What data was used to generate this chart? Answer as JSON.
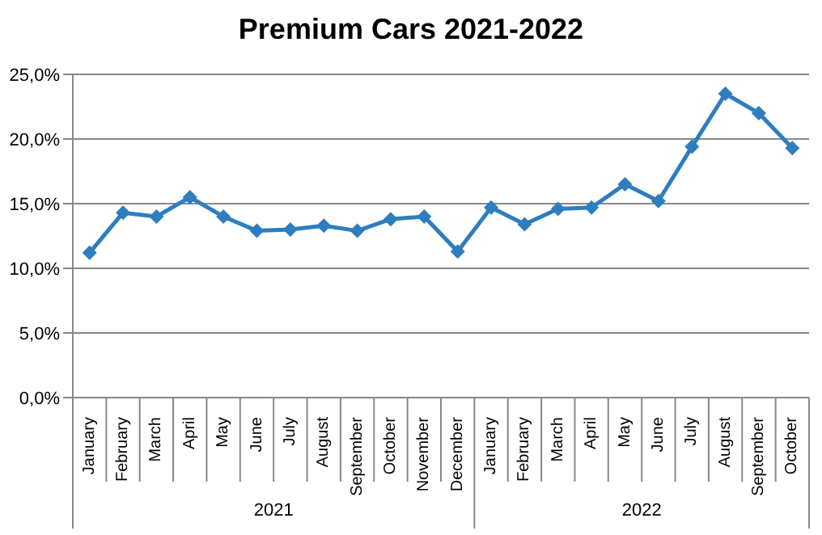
{
  "chart_data": {
    "type": "line",
    "title": "Premium Cars 2021-2022",
    "categories": [
      "January",
      "February",
      "March",
      "April",
      "May",
      "June",
      "July",
      "August",
      "September",
      "October",
      "November",
      "December",
      "January",
      "February",
      "March",
      "April",
      "May",
      "June",
      "July",
      "August",
      "September",
      "October"
    ],
    "series": [
      {
        "color": "#2e7dbf",
        "values": [
          11.2,
          14.3,
          14.0,
          15.5,
          14.0,
          12.9,
          13.0,
          13.3,
          12.9,
          13.8,
          14.0,
          11.3,
          14.7,
          13.4,
          14.6,
          14.7,
          16.5,
          15.2,
          19.4,
          23.5,
          22.0,
          19.3
        ]
      }
    ],
    "ylim": [
      0,
      25
    ],
    "yticks": [
      {
        "value": 0,
        "label": "0,0%"
      },
      {
        "value": 5,
        "label": "5,0%"
      },
      {
        "value": 10,
        "label": "10,0%"
      },
      {
        "value": 15,
        "label": "15,0%"
      },
      {
        "value": 20,
        "label": "20,0%"
      },
      {
        "value": 25,
        "label": "25,0%"
      }
    ],
    "annotations": [
      "2021",
      "2022"
    ],
    "grid": "y",
    "marker": "diamond",
    "line_style": "solid"
  }
}
